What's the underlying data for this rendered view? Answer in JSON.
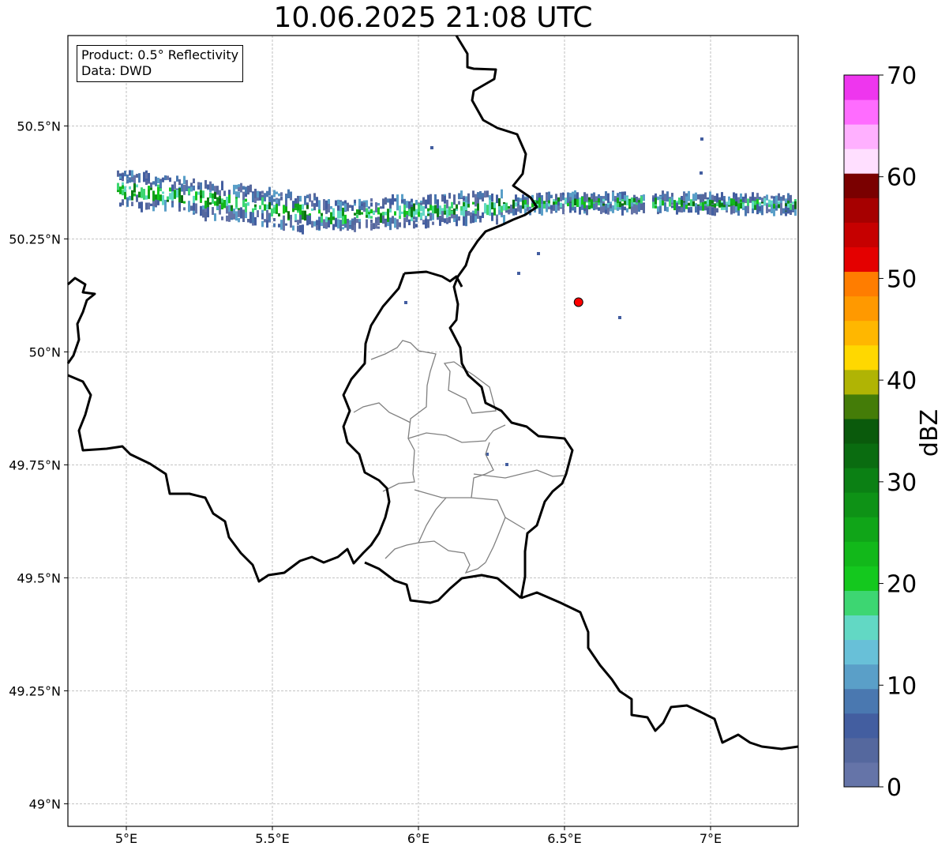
{
  "title": "10.06.2025 21:08 UTC",
  "info": {
    "product": "Product: 0.5° Reflectivity",
    "source": "Data: DWD"
  },
  "map": {
    "lon_range": [
      4.8,
      7.3
    ],
    "lat_range": [
      48.95,
      50.7
    ],
    "lon_ticks": [
      {
        "value": 5.0,
        "label": "5°E"
      },
      {
        "value": 5.5,
        "label": "5.5°E"
      },
      {
        "value": 6.0,
        "label": "6°E"
      },
      {
        "value": 6.5,
        "label": "6.5°E"
      },
      {
        "value": 7.0,
        "label": "7°E"
      }
    ],
    "lat_ticks": [
      {
        "value": 50.5,
        "label": "50.5°N"
      },
      {
        "value": 50.25,
        "label": "50.25°N"
      },
      {
        "value": 50.0,
        "label": "50°N"
      },
      {
        "value": 49.75,
        "label": "49.75°N"
      },
      {
        "value": 49.5,
        "label": "49.5°N"
      },
      {
        "value": 49.25,
        "label": "49.25°N"
      },
      {
        "value": 49.0,
        "label": "49°N"
      }
    ],
    "gridlines": true,
    "radar_site": {
      "lon": 6.548,
      "lat": 50.11,
      "color": "#ff0000"
    }
  },
  "colorbar": {
    "label": "dBZ",
    "min": 0,
    "max": 70,
    "tick_values": [
      0,
      10,
      20,
      30,
      40,
      50,
      60,
      70
    ],
    "tick_labels": [
      "0",
      "10",
      "20",
      "30",
      "40",
      "50",
      "60",
      "70"
    ],
    "colors": [
      "#6574a8",
      "#55689e",
      "#435ea0",
      "#4a78b0",
      "#5a9fc8",
      "#68c0d8",
      "#62d8c4",
      "#3dd672",
      "#14c81e",
      "#12b81a",
      "#10a518",
      "#0e9216",
      "#0b8014",
      "#0a6c10",
      "#0a5a0c",
      "#447c08",
      "#b0b404",
      "#ffd800",
      "#ffb700",
      "#ff9900",
      "#ff7d00",
      "#e40000",
      "#c60000",
      "#a60000",
      "#7a0000",
      "#ffdfff",
      "#ffb0ff",
      "#ff6cff",
      "#ee36ee"
    ]
  }
}
